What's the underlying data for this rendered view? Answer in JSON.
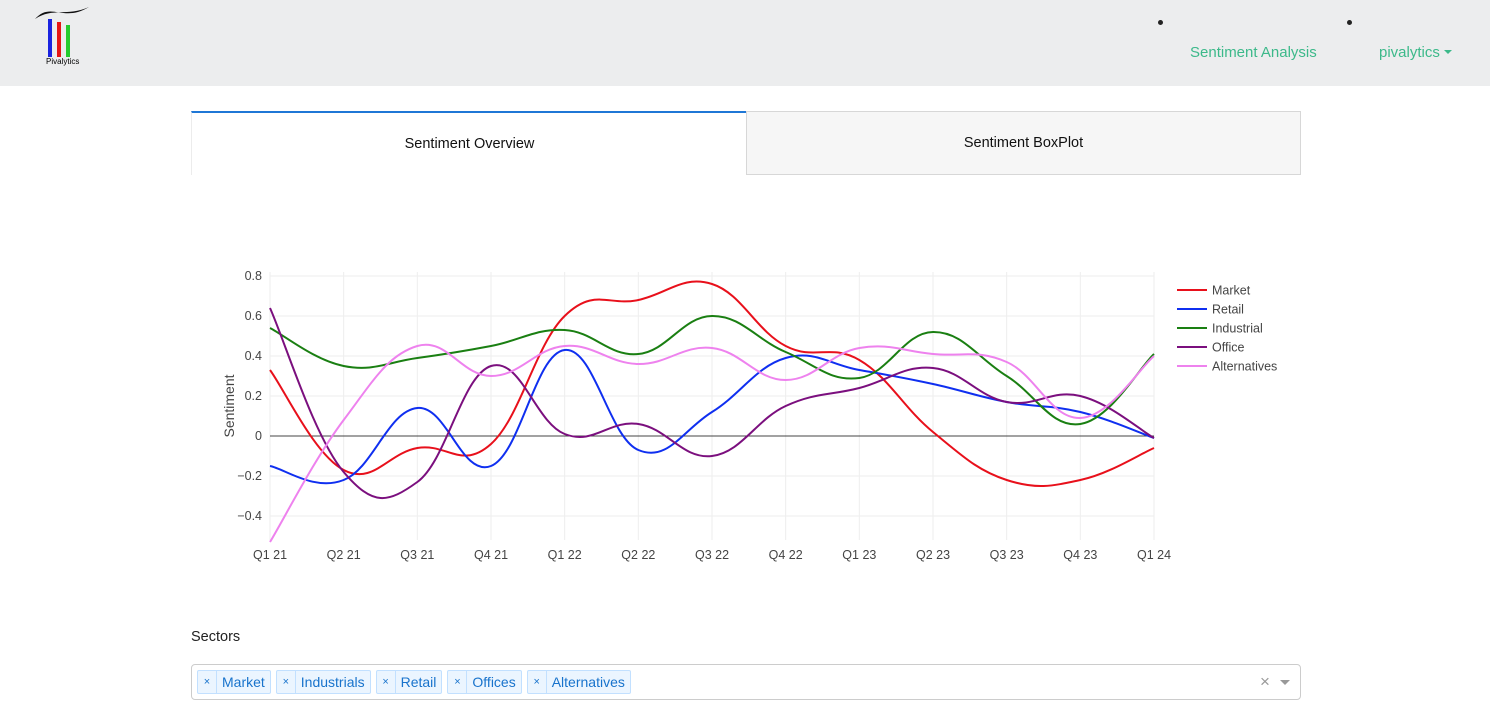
{
  "brand": {
    "name": "Pivalytics"
  },
  "nav": {
    "sentiment_label": "Sentiment Analysis",
    "user_label": "pivalytics"
  },
  "tabs": [
    {
      "label": "Sentiment Overview",
      "active": true
    },
    {
      "label": "Sentiment BoxPlot",
      "active": false
    }
  ],
  "colors": {
    "nav_link": "#3cb98a",
    "tab_active_border": "#1f77d6",
    "chip_text": "#1873cc"
  },
  "sectors": {
    "label": "Sectors",
    "selected": [
      "Market",
      "Industrials",
      "Retail",
      "Offices",
      "Alternatives"
    ]
  },
  "chart_data": {
    "type": "line",
    "categories": [
      "Q1 21",
      "Q2 21",
      "Q3 21",
      "Q4 21",
      "Q1 22",
      "Q2 22",
      "Q3 22",
      "Q4 22",
      "Q1 23",
      "Q2 23",
      "Q3 23",
      "Q4 23",
      "Q1 24"
    ],
    "ylabel": "Sentiment",
    "yticks": [
      0.8,
      0.6,
      0.4,
      0.2,
      0,
      -0.2,
      -0.4
    ],
    "ylim": [
      -0.52,
      0.82
    ],
    "grid": true,
    "legend_position": "right",
    "series": [
      {
        "name": "Market",
        "color": "#e8101b",
        "values": [
          0.33,
          -0.17,
          -0.06,
          -0.04,
          0.6,
          0.68,
          0.76,
          0.45,
          0.38,
          0.02,
          -0.22,
          -0.22,
          -0.06
        ]
      },
      {
        "name": "Retail",
        "color": "#0f2ff0",
        "values": [
          -0.15,
          -0.22,
          0.14,
          -0.15,
          0.43,
          -0.07,
          0.12,
          0.39,
          0.33,
          0.26,
          0.17,
          0.12,
          -0.01
        ]
      },
      {
        "name": "Industrial",
        "color": "#1a7f12",
        "values": [
          0.54,
          0.35,
          0.39,
          0.45,
          0.53,
          0.41,
          0.6,
          0.42,
          0.29,
          0.52,
          0.3,
          0.06,
          0.41
        ]
      },
      {
        "name": "Office",
        "color": "#7b0f7e",
        "values": [
          0.64,
          -0.18,
          -0.23,
          0.35,
          0.01,
          0.06,
          -0.1,
          0.15,
          0.24,
          0.34,
          0.17,
          0.2,
          -0.01
        ]
      },
      {
        "name": "Alternatives",
        "color": "#ee82ee",
        "values": [
          -0.53,
          0.08,
          0.45,
          0.3,
          0.45,
          0.36,
          0.44,
          0.28,
          0.44,
          0.41,
          0.37,
          0.09,
          0.4
        ]
      }
    ]
  }
}
